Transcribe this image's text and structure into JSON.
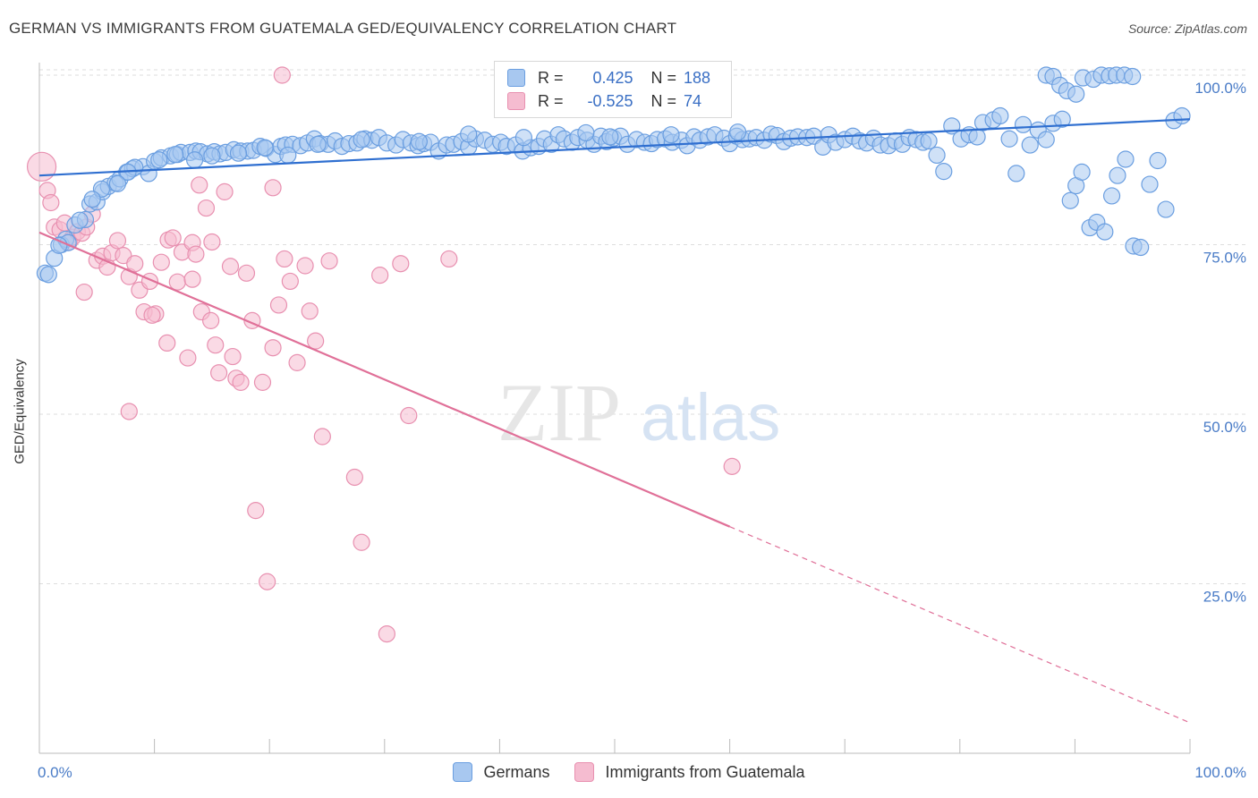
{
  "title": "GERMAN VS IMMIGRANTS FROM GUATEMALA GED/EQUIVALENCY CORRELATION CHART",
  "source": "Source: ZipAtlas.com",
  "watermark": {
    "zip": "ZIP",
    "atlas": "atlas"
  },
  "colors": {
    "blue_fill": "#a8c8f0",
    "blue_stroke": "#6a9ee0",
    "blue_line": "#2f6fd0",
    "pink_fill": "#f5bcd0",
    "pink_stroke": "#e890b0",
    "pink_line": "#e07098",
    "tick_text": "#4a7cc7",
    "grid": "#dddddd"
  },
  "legend": {
    "series": [
      {
        "r_label": "R =",
        "r_value": "0.425",
        "n_label": "N =",
        "n_value": "188"
      },
      {
        "r_label": "R =",
        "r_value": "-0.525",
        "n_label": "N =",
        "n_value": "74"
      }
    ]
  },
  "bottom_legend": {
    "germans": "Germans",
    "guatemala": "Immigrants from Guatemala"
  },
  "chart_data": {
    "type": "scatter",
    "title": "GERMAN VS IMMIGRANTS FROM GUATEMALA GED/EQUIVALENCY CORRELATION CHART",
    "xlabel": "",
    "ylabel": "GED/Equivalency",
    "xlim": [
      0,
      100
    ],
    "ylim": [
      0,
      102
    ],
    "x_tick_labels": [
      "0.0%",
      "100.0%"
    ],
    "y_tick_labels": [
      "25.0%",
      "50.0%",
      "75.0%",
      "100.0%"
    ],
    "y_ticks": [
      25,
      50,
      75,
      100
    ],
    "grid": true,
    "legend_position": "top-center",
    "series": [
      {
        "name": "Germans",
        "r": 0.425,
        "n": 188,
        "trend": {
          "x0": 0,
          "y0": 85.2,
          "x1": 100,
          "y1": 93.5,
          "dashed_from": null
        },
        "points": [
          [
            0.5,
            70.8
          ],
          [
            1.3,
            73
          ],
          [
            1.9,
            75
          ],
          [
            2.3,
            75.8
          ],
          [
            3.1,
            77.9
          ],
          [
            4.0,
            78.7
          ],
          [
            4.4,
            81
          ],
          [
            5.0,
            81.3
          ],
          [
            5.5,
            82.8
          ],
          [
            6.0,
            83.6
          ],
          [
            6.6,
            84.1
          ],
          [
            7.0,
            84.7
          ],
          [
            7.6,
            85.7
          ],
          [
            8.1,
            86.2
          ],
          [
            9.0,
            86.5
          ],
          [
            9.5,
            85.5
          ],
          [
            10.0,
            87.3
          ],
          [
            10.6,
            87.8
          ],
          [
            11.4,
            88.1
          ],
          [
            12.0,
            88.3
          ],
          [
            12.3,
            88.6
          ],
          [
            13.1,
            88.6
          ],
          [
            13.6,
            88.8
          ],
          [
            14.0,
            88.7
          ],
          [
            14.6,
            88.4
          ],
          [
            15.2,
            88.7
          ],
          [
            15.7,
            88.4
          ],
          [
            16.2,
            88.6
          ],
          [
            16.9,
            89.0
          ],
          [
            17.5,
            88.8
          ],
          [
            18.1,
            88.8
          ],
          [
            18.6,
            88.9
          ],
          [
            19.2,
            89.5
          ],
          [
            19.7,
            89.2
          ],
          [
            20.5,
            88.3
          ],
          [
            21.0,
            89.5
          ],
          [
            21.4,
            89.7
          ],
          [
            22.0,
            89.8
          ],
          [
            22.7,
            89.6
          ],
          [
            23.3,
            90.0
          ],
          [
            23.9,
            90.6
          ],
          [
            24.4,
            89.9
          ],
          [
            25.1,
            89.8
          ],
          [
            25.7,
            90.3
          ],
          [
            26.3,
            89.5
          ],
          [
            26.9,
            89.9
          ],
          [
            27.6,
            90.0
          ],
          [
            28.3,
            90.6
          ],
          [
            28.9,
            90.4
          ],
          [
            29.5,
            90.8
          ],
          [
            30.2,
            90.0
          ],
          [
            31.0,
            89.7
          ],
          [
            31.6,
            90.5
          ],
          [
            32.3,
            90.0
          ],
          [
            32.9,
            89.6
          ],
          [
            33.4,
            89.9
          ],
          [
            34.0,
            90.1
          ],
          [
            34.7,
            88.8
          ],
          [
            35.4,
            89.7
          ],
          [
            36.0,
            89.8
          ],
          [
            36.7,
            90.2
          ],
          [
            37.3,
            89.4
          ],
          [
            37.9,
            90.6
          ],
          [
            38.7,
            90.4
          ],
          [
            39.4,
            89.8
          ],
          [
            40.1,
            90.1
          ],
          [
            40.6,
            89.5
          ],
          [
            41.4,
            89.7
          ],
          [
            42.0,
            88.8
          ],
          [
            42.7,
            89.3
          ],
          [
            43.4,
            89.5
          ],
          [
            43.9,
            90.6
          ],
          [
            44.5,
            89.8
          ],
          [
            45.1,
            91.2
          ],
          [
            45.6,
            90.6
          ],
          [
            46.3,
            90.1
          ],
          [
            46.8,
            90.8
          ],
          [
            47.6,
            90.4
          ],
          [
            48.2,
            89.8
          ],
          [
            48.8,
            91.0
          ],
          [
            49.3,
            90.2
          ],
          [
            49.9,
            90.7
          ],
          [
            50.5,
            91.0
          ],
          [
            51.1,
            89.8
          ],
          [
            51.9,
            90.5
          ],
          [
            52.6,
            90.1
          ],
          [
            53.2,
            89.9
          ],
          [
            53.7,
            90.5
          ],
          [
            54.4,
            90.6
          ],
          [
            55.0,
            90.1
          ],
          [
            55.8,
            90.4
          ],
          [
            56.3,
            89.6
          ],
          [
            56.9,
            90.9
          ],
          [
            57.4,
            90.4
          ],
          [
            58.1,
            90.9
          ],
          [
            58.7,
            91.2
          ],
          [
            59.5,
            90.7
          ],
          [
            60.0,
            89.9
          ],
          [
            60.6,
            91.0
          ],
          [
            61.1,
            90.5
          ],
          [
            61.7,
            90.6
          ],
          [
            62.3,
            90.8
          ],
          [
            63.0,
            90.4
          ],
          [
            63.6,
            91.3
          ],
          [
            64.1,
            91.1
          ],
          [
            64.7,
            90.2
          ],
          [
            65.3,
            90.7
          ],
          [
            65.9,
            90.9
          ],
          [
            66.7,
            90.8
          ],
          [
            67.3,
            91.0
          ],
          [
            68.1,
            89.4
          ],
          [
            68.6,
            91.2
          ],
          [
            69.2,
            90.1
          ],
          [
            70.0,
            90.5
          ],
          [
            70.7,
            91.0
          ],
          [
            71.3,
            90.3
          ],
          [
            71.9,
            90.0
          ],
          [
            72.5,
            90.7
          ],
          [
            73.1,
            89.7
          ],
          [
            73.8,
            89.6
          ],
          [
            74.4,
            90.3
          ],
          [
            75.0,
            89.8
          ],
          [
            75.6,
            90.8
          ],
          [
            76.2,
            90.5
          ],
          [
            76.8,
            90.1
          ],
          [
            77.3,
            90.3
          ],
          [
            78.0,
            88.2
          ],
          [
            78.6,
            85.8
          ],
          [
            79.3,
            92.5
          ],
          [
            80.1,
            90.6
          ],
          [
            80.8,
            91.2
          ],
          [
            81.5,
            90.9
          ],
          [
            82.0,
            93.0
          ],
          [
            82.9,
            93.4
          ],
          [
            83.5,
            94.0
          ],
          [
            84.3,
            90.6
          ],
          [
            84.9,
            85.5
          ],
          [
            85.5,
            92.7
          ],
          [
            86.1,
            89.7
          ],
          [
            86.8,
            91.9
          ],
          [
            87.5,
            90.5
          ],
          [
            88.1,
            92.9
          ],
          [
            88.9,
            93.5
          ],
          [
            89.6,
            81.5
          ],
          [
            90.1,
            83.7
          ],
          [
            90.6,
            85.7
          ],
          [
            91.3,
            77.5
          ],
          [
            91.9,
            78.3
          ],
          [
            92.6,
            76.9
          ],
          [
            93.2,
            82.2
          ],
          [
            93.7,
            85.2
          ],
          [
            94.4,
            87.6
          ],
          [
            95.1,
            74.8
          ],
          [
            95.7,
            74.6
          ],
          [
            96.5,
            83.9
          ],
          [
            97.2,
            87.4
          ],
          [
            97.9,
            80.2
          ],
          [
            98.6,
            93.3
          ],
          [
            99.3,
            94.0
          ],
          [
            60.7,
            91.6
          ],
          [
            47.5,
            91.5
          ],
          [
            42.1,
            90.8
          ],
          [
            37.3,
            91.3
          ],
          [
            33.0,
            90.2
          ],
          [
            28.0,
            90.5
          ],
          [
            24.2,
            89.8
          ],
          [
            21.6,
            88.2
          ],
          [
            19.6,
            89.3
          ],
          [
            17.3,
            88.5
          ],
          [
            15.0,
            88.1
          ],
          [
            13.5,
            87.5
          ],
          [
            11.8,
            88.3
          ],
          [
            10.4,
            87.5
          ],
          [
            8.3,
            86.4
          ],
          [
            7.7,
            85.7
          ],
          [
            6.8,
            84.0
          ],
          [
            5.4,
            83.2
          ],
          [
            4.6,
            81.7
          ],
          [
            3.5,
            78.6
          ],
          [
            2.5,
            75.3
          ],
          [
            1.7,
            74.9
          ],
          [
            0.8,
            70.6
          ],
          [
            54.9,
            91.2
          ],
          [
            49.6,
            90.9
          ],
          [
            87.5,
            100
          ],
          [
            88.1,
            99.8
          ],
          [
            88.7,
            98.5
          ],
          [
            89.3,
            97.7
          ],
          [
            90.1,
            97.2
          ],
          [
            90.7,
            99.6
          ],
          [
            91.6,
            99.4
          ],
          [
            92.3,
            100
          ],
          [
            93.0,
            99.9
          ],
          [
            93.6,
            100
          ],
          [
            94.3,
            100
          ],
          [
            95.0,
            99.8
          ]
        ]
      },
      {
        "name": "Immigrants from Guatemala",
        "r": -0.525,
        "n": 74,
        "trend": {
          "x0": 0,
          "y0": 76.8,
          "x1": 100,
          "y1": 4.5,
          "dashed_from": 60
        },
        "points": [
          [
            0.2,
            86.5
          ],
          [
            0.7,
            83
          ],
          [
            1.0,
            81.2
          ],
          [
            1.3,
            77.6
          ],
          [
            1.8,
            77.2
          ],
          [
            2.2,
            78.2
          ],
          [
            2.6,
            75.4
          ],
          [
            2.9,
            76.1
          ],
          [
            3.3,
            76.9
          ],
          [
            3.7,
            76.7
          ],
          [
            4.1,
            77.6
          ],
          [
            4.6,
            79.5
          ],
          [
            5.0,
            72.7
          ],
          [
            5.5,
            73.3
          ],
          [
            5.9,
            71.7
          ],
          [
            6.3,
            73.8
          ],
          [
            6.8,
            75.6
          ],
          [
            7.3,
            73.4
          ],
          [
            7.8,
            70.3
          ],
          [
            8.3,
            72.2
          ],
          [
            8.7,
            68.3
          ],
          [
            9.1,
            65.1
          ],
          [
            9.6,
            69.6
          ],
          [
            10.1,
            64.8
          ],
          [
            10.6,
            72.4
          ],
          [
            11.2,
            75.7
          ],
          [
            11.6,
            76.0
          ],
          [
            12.0,
            69.5
          ],
          [
            12.4,
            73.9
          ],
          [
            12.9,
            58.3
          ],
          [
            13.3,
            75.3
          ],
          [
            13.6,
            73.6
          ],
          [
            14.1,
            65.1
          ],
          [
            14.5,
            80.4
          ],
          [
            14.9,
            63.8
          ],
          [
            15.3,
            60.2
          ],
          [
            15.6,
            56.1
          ],
          [
            16.1,
            82.8
          ],
          [
            16.6,
            71.8
          ],
          [
            17.1,
            55.3
          ],
          [
            17.5,
            54.7
          ],
          [
            18.0,
            70.8
          ],
          [
            18.5,
            63.8
          ],
          [
            18.8,
            35.8
          ],
          [
            19.4,
            54.7
          ],
          [
            19.8,
            25.3
          ],
          [
            20.3,
            59.8
          ],
          [
            20.8,
            66.1
          ],
          [
            21.3,
            72.9
          ],
          [
            21.8,
            69.6
          ],
          [
            22.4,
            57.6
          ],
          [
            23.1,
            71.9
          ],
          [
            23.5,
            65.2
          ],
          [
            24.0,
            60.8
          ],
          [
            24.6,
            46.7
          ],
          [
            25.2,
            72.6
          ],
          [
            27.4,
            40.7
          ],
          [
            28.0,
            31.1
          ],
          [
            29.6,
            70.5
          ],
          [
            30.2,
            17.6
          ],
          [
            31.4,
            72.2
          ],
          [
            32.1,
            49.8
          ],
          [
            35.6,
            72.9
          ],
          [
            60.2,
            42.3
          ],
          [
            7.8,
            50.4
          ],
          [
            9.8,
            64.6
          ],
          [
            11.1,
            60.5
          ],
          [
            13.3,
            69.9
          ],
          [
            15.0,
            75.4
          ],
          [
            16.8,
            58.5
          ],
          [
            21.1,
            100
          ],
          [
            20.3,
            83.4
          ],
          [
            13.9,
            83.8
          ],
          [
            3.9,
            68.0
          ]
        ]
      }
    ]
  }
}
